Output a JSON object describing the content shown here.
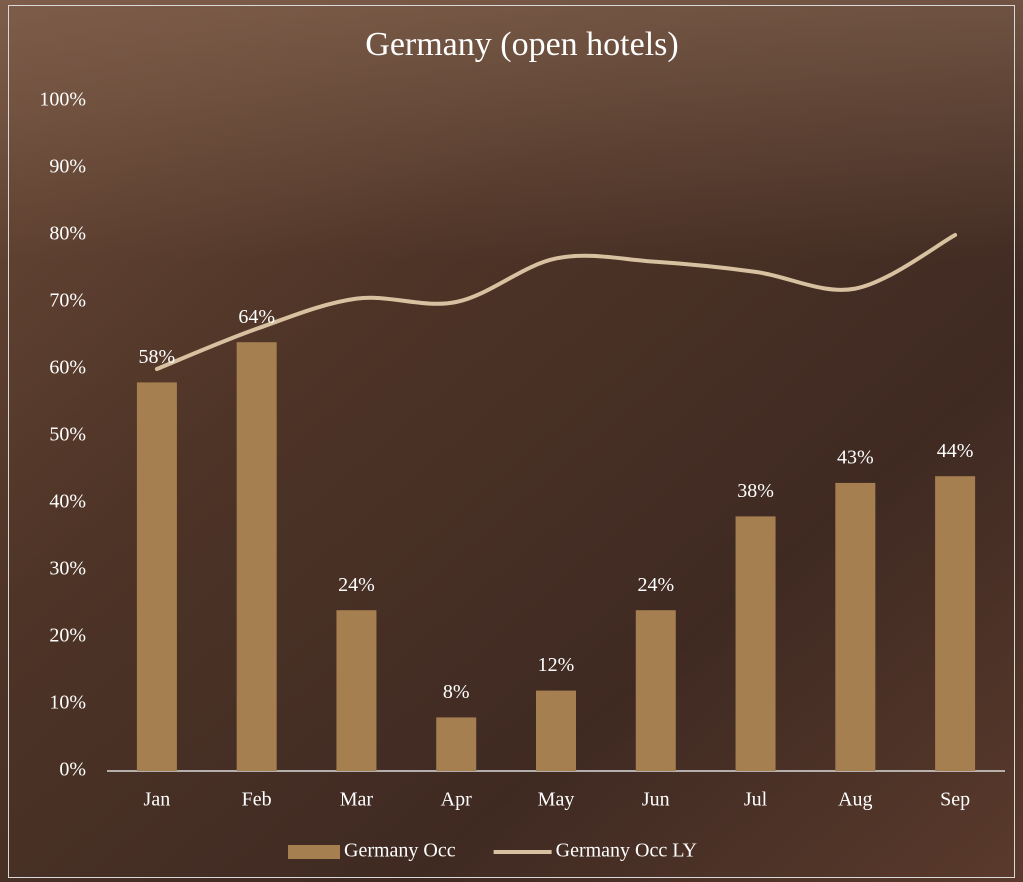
{
  "chart_data": {
    "type": "bar",
    "title": "Germany (open hotels)",
    "categories": [
      "Jan",
      "Feb",
      "Mar",
      "Apr",
      "May",
      "Jun",
      "Jul",
      "Aug",
      "Sep"
    ],
    "series": [
      {
        "name": "Germany Occ",
        "type": "bar",
        "color": "#a67f50",
        "values": [
          58,
          64,
          24,
          8,
          12,
          24,
          38,
          43,
          44
        ],
        "value_labels": [
          "58%",
          "64%",
          "24%",
          "8%",
          "12%",
          "24%",
          "38%",
          "43%",
          "44%"
        ]
      },
      {
        "name": "Germany Occ LY",
        "type": "line",
        "color": "#d8c1a0",
        "values": [
          60,
          66,
          70.5,
          70,
          76.5,
          76,
          74.5,
          72,
          80
        ]
      }
    ],
    "ylim": [
      0,
      100
    ],
    "yticks": [
      {
        "value": 0,
        "label": "0%"
      },
      {
        "value": 10,
        "label": "10%"
      },
      {
        "value": 20,
        "label": "20%"
      },
      {
        "value": 30,
        "label": "30%"
      },
      {
        "value": 40,
        "label": "40%"
      },
      {
        "value": 50,
        "label": "50%"
      },
      {
        "value": 60,
        "label": "60%"
      },
      {
        "value": 70,
        "label": "70%"
      },
      {
        "value": 80,
        "label": "80%"
      },
      {
        "value": 90,
        "label": "90%"
      },
      {
        "value": 100,
        "label": "100%"
      }
    ],
    "grid": false
  }
}
